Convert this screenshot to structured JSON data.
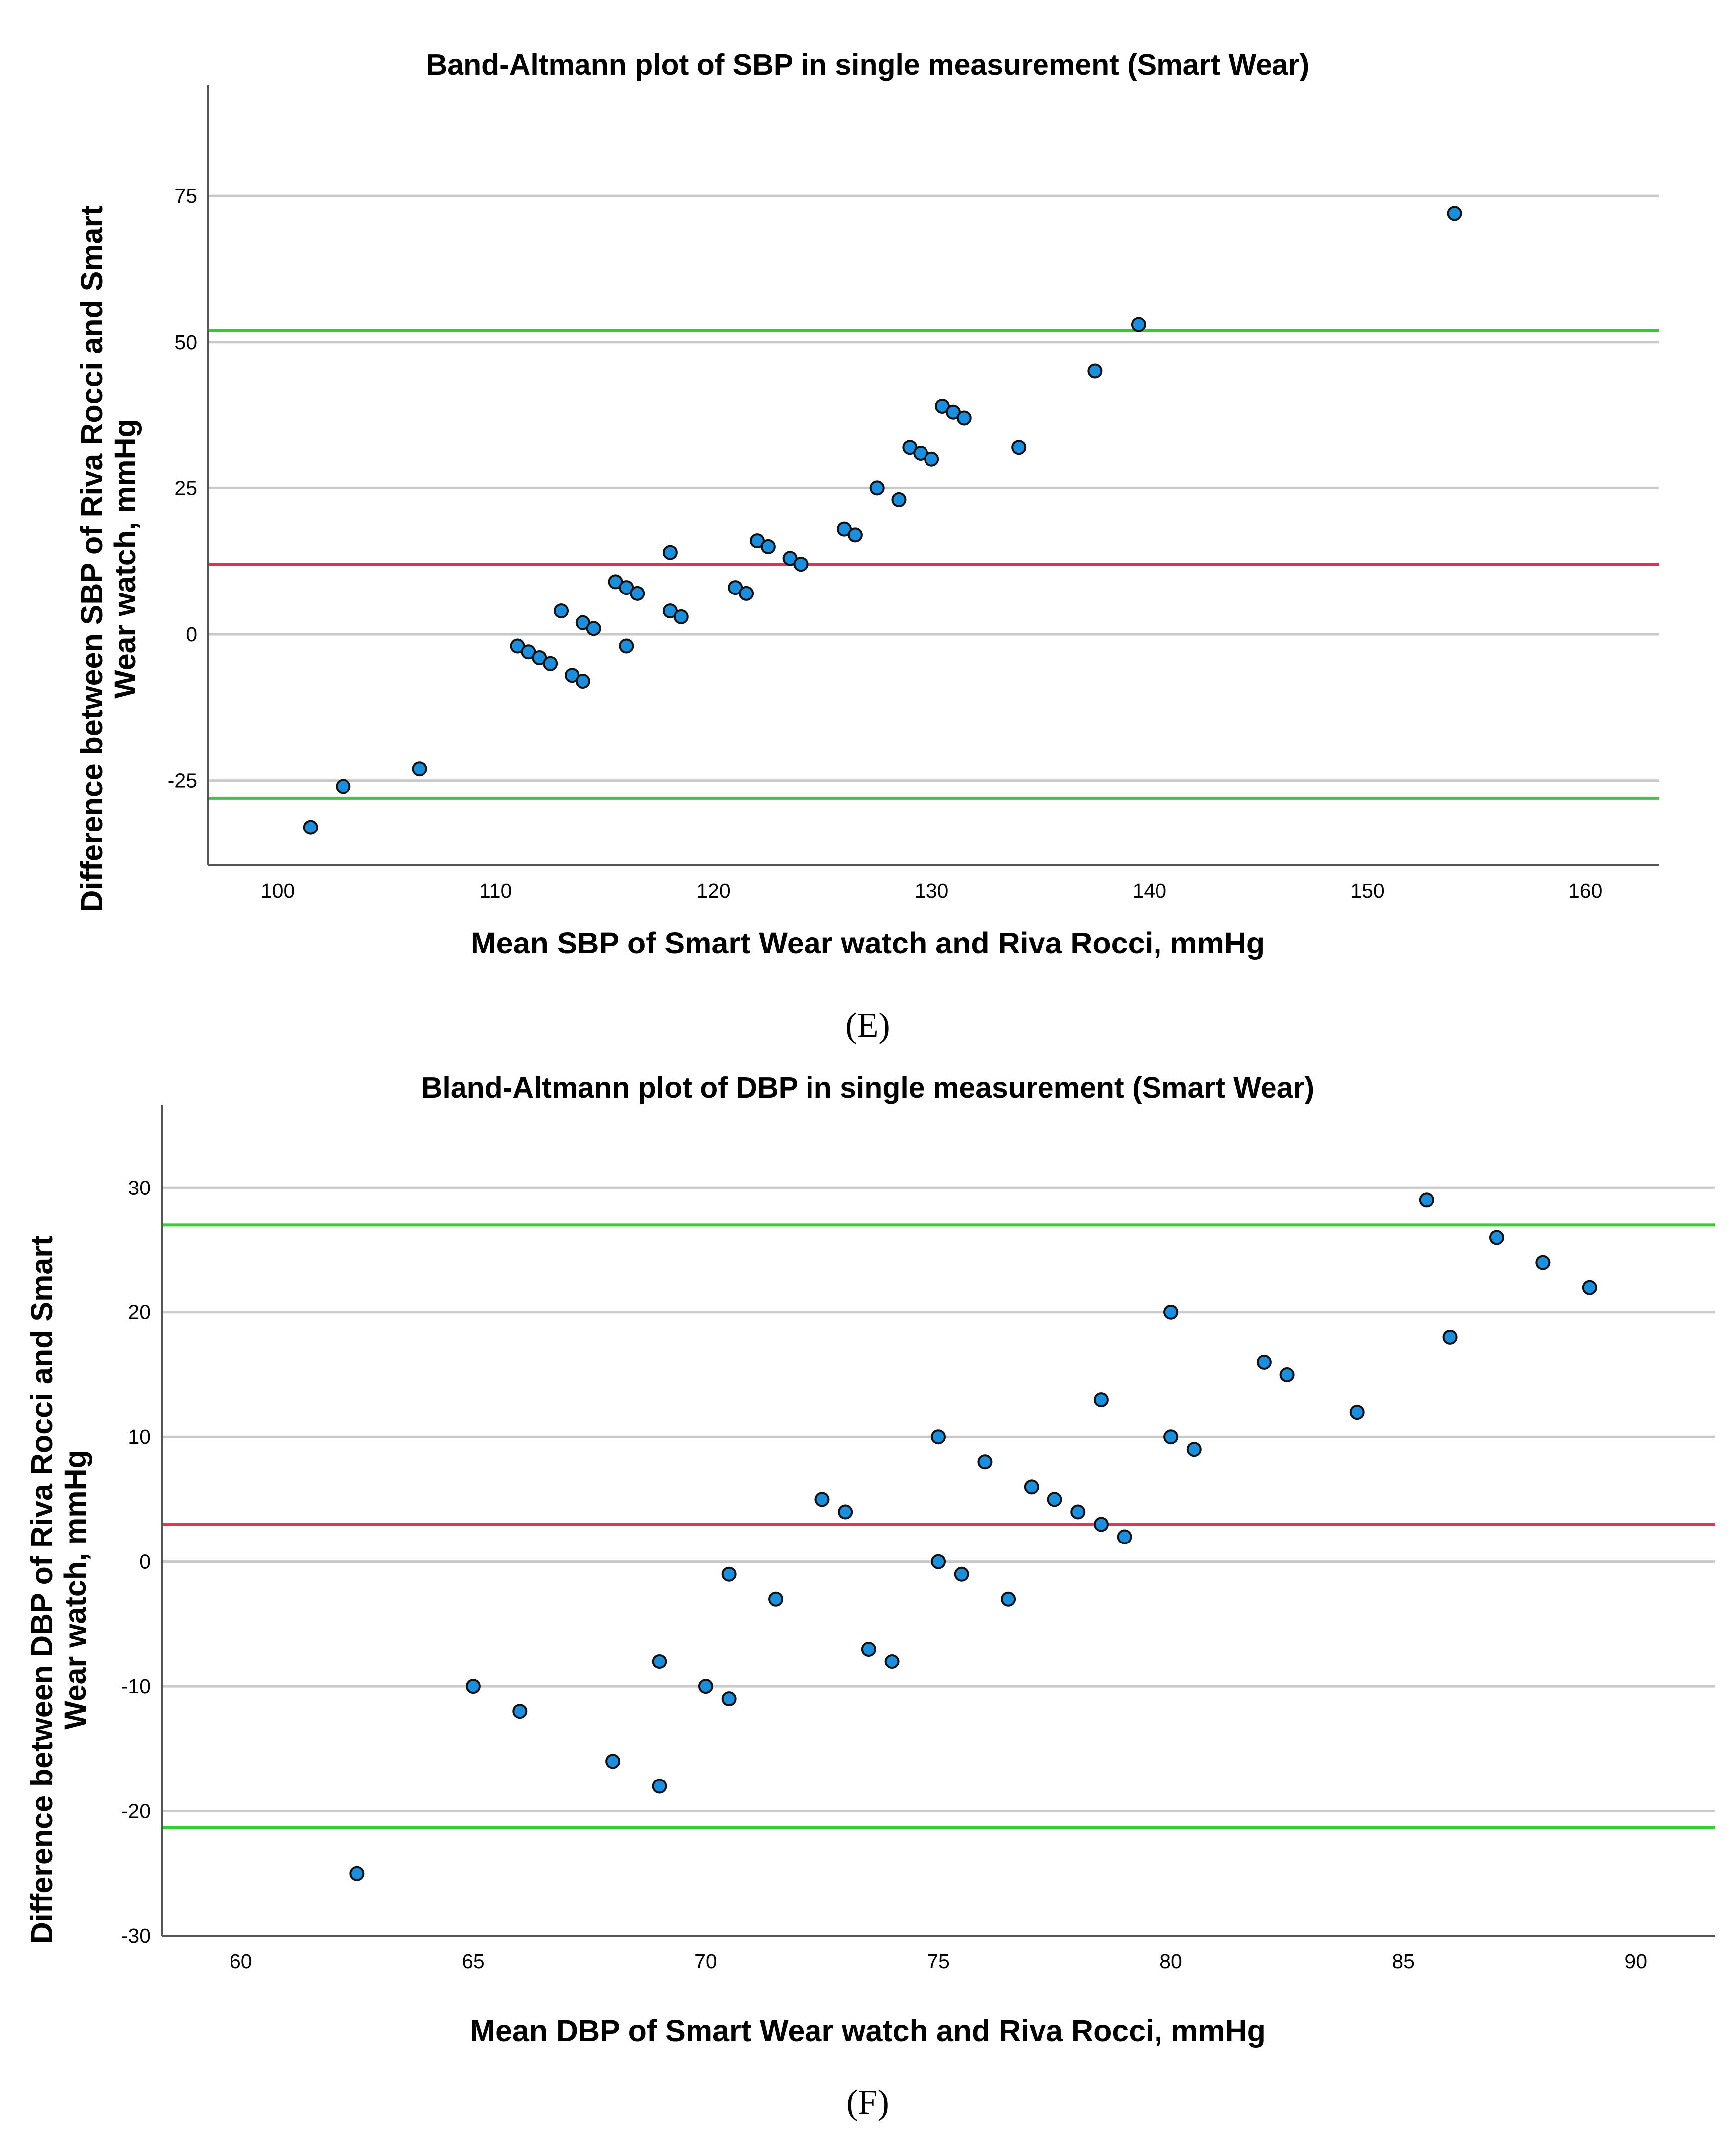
{
  "charts": [
    {
      "panel_label": "(E)",
      "colors": {
        "mean_line": "#e8305a",
        "limit_lines": "#33cc33",
        "grid": "#c8c8c8",
        "points": "#1a8fde"
      }
    },
    {
      "panel_label": "(F)",
      "colors": {
        "mean_line": "#e8305a",
        "limit_lines": "#33cc33",
        "grid": "#c8c8c8",
        "points": "#1a8fde"
      }
    }
  ],
  "chart_data": [
    {
      "type": "scatter",
      "title": "Band-Altmann plot of SBP in single measurement (Smart Wear)",
      "xlabel": "Mean SBP of Smart Wear watch and Riva Rocci, mmHg",
      "ylabel": "Difference between SBP of Riva Rocci and Smart Wear watch, mmHg",
      "xlim": [
        96.8,
        163.4
      ],
      "ylim": [
        -39.5,
        94
      ],
      "x_ticks": [
        100,
        110,
        120,
        130,
        140,
        150,
        160
      ],
      "y_ticks": [
        -25,
        0,
        25,
        50,
        75
      ],
      "grid": "horizontal",
      "mean_line": 12,
      "limits_of_agreement": [
        -28,
        52
      ],
      "series": [
        {
          "points": [
            [
              101.5,
              -33
            ],
            [
              103,
              -26
            ],
            [
              106.5,
              -23
            ],
            [
              111,
              -2
            ],
            [
              111.5,
              -3
            ],
            [
              112,
              -4
            ],
            [
              112.5,
              -5
            ],
            [
              113,
              4
            ],
            [
              113.5,
              -7
            ],
            [
              114,
              -8
            ],
            [
              114,
              2
            ],
            [
              114.5,
              1
            ],
            [
              115.5,
              9
            ],
            [
              116,
              8
            ],
            [
              116,
              -2
            ],
            [
              116.5,
              7
            ],
            [
              118,
              14
            ],
            [
              118,
              4
            ],
            [
              118.5,
              3
            ],
            [
              121,
              8
            ],
            [
              121.5,
              7
            ],
            [
              122,
              16
            ],
            [
              122.5,
              15
            ],
            [
              123.5,
              13
            ],
            [
              124,
              12
            ],
            [
              126,
              18
            ],
            [
              126.5,
              17
            ],
            [
              127.5,
              25
            ],
            [
              128.5,
              23
            ],
            [
              129,
              32
            ],
            [
              129.5,
              31
            ],
            [
              130,
              30
            ],
            [
              130.5,
              39
            ],
            [
              131,
              38
            ],
            [
              131.5,
              37
            ],
            [
              134,
              32
            ],
            [
              137.5,
              45
            ],
            [
              139.5,
              53
            ],
            [
              154,
              72
            ]
          ]
        }
      ]
    },
    {
      "type": "scatter",
      "title": "Bland-Altmann plot of DBP in single measurement (Smart Wear)",
      "xlabel": "Mean DBP of Smart Wear watch and Riva Rocci, mmHg",
      "ylabel": "Difference between DBP of Riva Rocci and Smart Wear watch, mmHg",
      "xlim": [
        58.3,
        91.7
      ],
      "ylim": [
        -30,
        36.6
      ],
      "x_ticks": [
        60,
        65,
        70,
        75,
        80,
        85,
        90
      ],
      "y_ticks": [
        -30,
        -20,
        -10,
        0,
        10,
        20,
        30
      ],
      "grid": "horizontal",
      "mean_line": 3,
      "limits_of_agreement": [
        -21.3,
        27
      ],
      "series": [
        {
          "points": [
            [
              62.5,
              -25
            ],
            [
              65,
              -10
            ],
            [
              66,
              -12
            ],
            [
              68,
              -16
            ],
            [
              69,
              -8
            ],
            [
              69,
              -18
            ],
            [
              70,
              -10
            ],
            [
              70.5,
              -1
            ],
            [
              70.5,
              -11
            ],
            [
              71.5,
              -3
            ],
            [
              72.5,
              5
            ],
            [
              73,
              4
            ],
            [
              73.5,
              -7
            ],
            [
              74,
              -8
            ],
            [
              75,
              10
            ],
            [
              75,
              0
            ],
            [
              75.5,
              -1
            ],
            [
              76,
              8
            ],
            [
              76.5,
              -3
            ],
            [
              77,
              6
            ],
            [
              77.5,
              5
            ],
            [
              78,
              4
            ],
            [
              78.5,
              13
            ],
            [
              78.5,
              3
            ],
            [
              79,
              2
            ],
            [
              80,
              20
            ],
            [
              80,
              10
            ],
            [
              80.5,
              9
            ],
            [
              82,
              16
            ],
            [
              82.5,
              15
            ],
            [
              84,
              12
            ],
            [
              85.5,
              29
            ],
            [
              86,
              18
            ],
            [
              87,
              26
            ],
            [
              88,
              24
            ],
            [
              89,
              22
            ]
          ]
        }
      ]
    }
  ]
}
